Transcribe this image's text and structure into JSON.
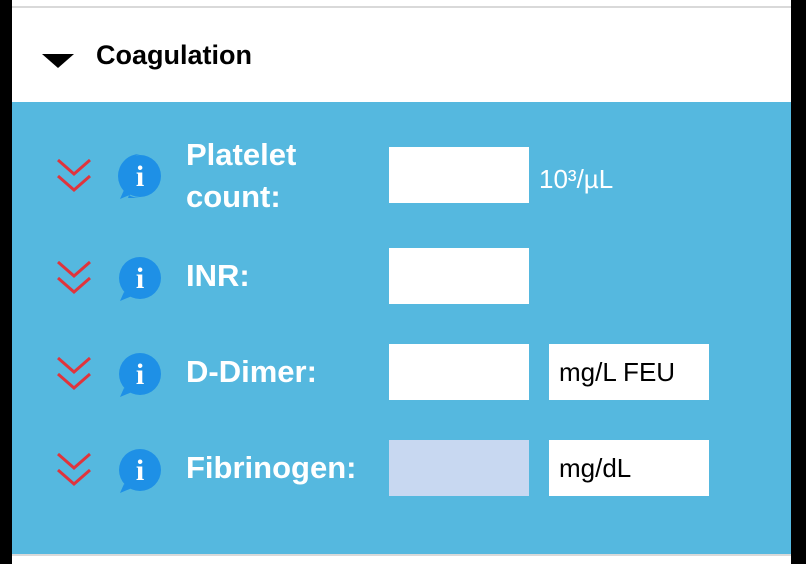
{
  "section": {
    "title": "Coagulation",
    "expanded": true
  },
  "colors": {
    "body_bg": "#55b8df",
    "chevron": "#e0343c",
    "info": "#1e90e6",
    "disabled_field": "#c8d8f1"
  },
  "rows": [
    {
      "label": "Platelet count:",
      "label_line1": "Platelet",
      "label_line2": "count:",
      "value": "",
      "unit": "10³/µL"
    },
    {
      "label": "INR:",
      "value": "",
      "unit": ""
    },
    {
      "label": "D-Dimer:",
      "value": "",
      "unit": "mg/L FEU"
    },
    {
      "label": "Fibrinogen:",
      "value": "",
      "unit": "mg/dL"
    }
  ],
  "icons": {
    "toggle": "triangle-down-icon",
    "expand": "double-chevron-down-icon",
    "info": "info-icon"
  }
}
